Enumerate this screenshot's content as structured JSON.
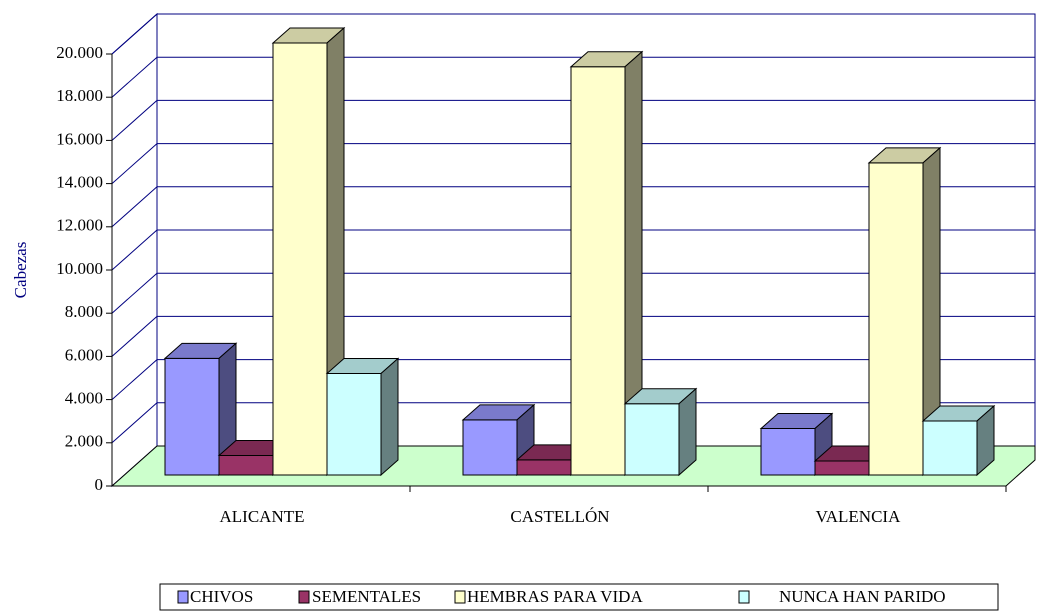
{
  "chart_data": {
    "type": "bar3d",
    "y_label": "Cabezas",
    "categories": [
      "ALICANTE",
      "CASTELLÓN",
      "VALENCIA"
    ],
    "series": [
      {
        "name": "CHIVOS",
        "color": "#9999ff",
        "values": [
          5400,
          2550,
          2150
        ]
      },
      {
        "name": "SEMENTALES",
        "color": "#993366",
        "values": [
          900,
          700,
          650
        ]
      },
      {
        "name": "HEMBRAS PARA VIDA",
        "color": "#ffffcc",
        "values": [
          20000,
          18900,
          14450
        ]
      },
      {
        "name": "NUNCA HAN PARIDO",
        "color": "#ccffff",
        "values": [
          4700,
          3300,
          2500
        ]
      }
    ],
    "ylim": [
      0,
      20000
    ],
    "yticks": [
      0,
      {
        "value": 2000,
        "label": "2.000"
      },
      {
        "value": 4000,
        "label": "4.000"
      },
      {
        "value": 6000,
        "label": "6.000"
      },
      {
        "value": 8000,
        "label": "8.000"
      },
      {
        "value": 10000,
        "label": "10.000"
      },
      {
        "value": 12000,
        "label": "12.000"
      },
      {
        "value": 14000,
        "label": "14.000"
      },
      {
        "value": 16000,
        "label": "16.000"
      },
      {
        "value": 18000,
        "label": "18.000"
      },
      {
        "value": 20000,
        "label": "20.000"
      }
    ],
    "grid": true,
    "legend": "bottom"
  }
}
